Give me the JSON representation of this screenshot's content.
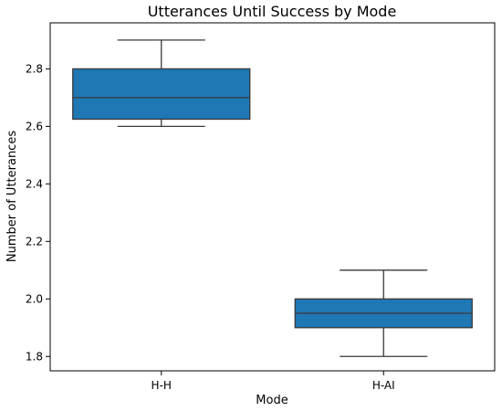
{
  "chart_data": {
    "type": "box",
    "title": "Utterances Until Success by Mode",
    "xlabel": "Mode",
    "ylabel": "Number of Utterances",
    "ylim": [
      1.75,
      2.96
    ],
    "yticks": [
      1.8,
      2.0,
      2.2,
      2.4,
      2.6,
      2.8
    ],
    "ytick_labels": [
      "1.8",
      "2.0",
      "2.2",
      "2.4",
      "2.6",
      "2.8"
    ],
    "categories": [
      "H-H",
      "H-AI"
    ],
    "boxes": [
      {
        "category": "H-H",
        "whisker_low": 2.6,
        "q1": 2.625,
        "median": 2.7,
        "q3": 2.8,
        "whisker_high": 2.9
      },
      {
        "category": "H-AI",
        "whisker_low": 1.8,
        "q1": 1.9,
        "median": 1.95,
        "q3": 2.0,
        "whisker_high": 2.1
      }
    ],
    "box_color": "#1f77b4",
    "line_color": "#3a3a3a",
    "grid": false,
    "legend": "none"
  }
}
